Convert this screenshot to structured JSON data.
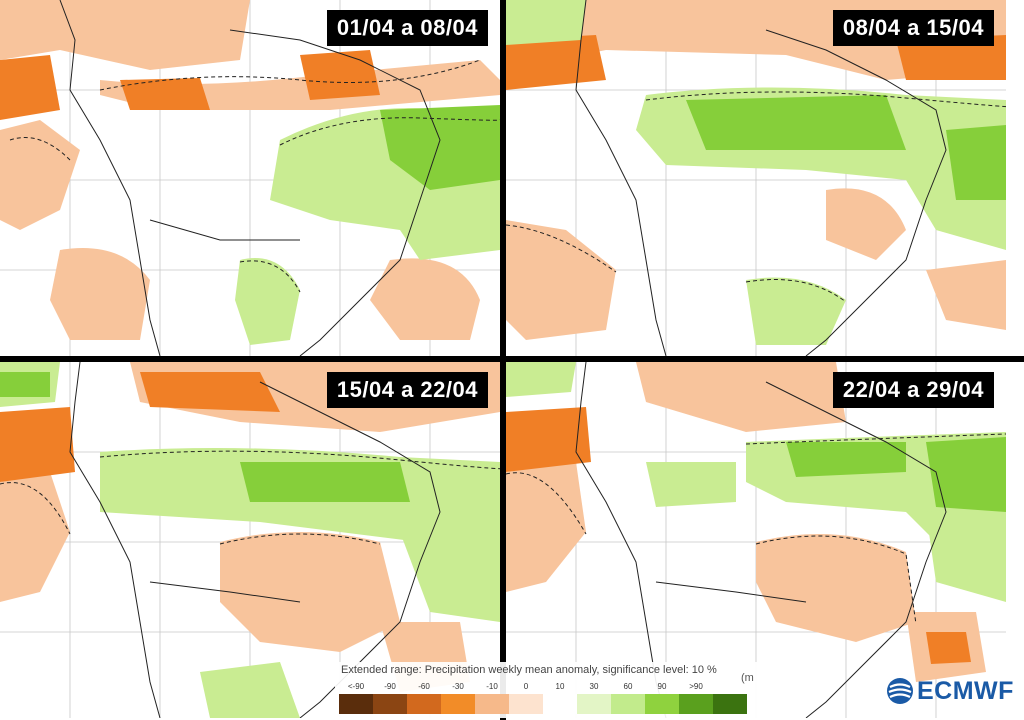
{
  "panels": [
    {
      "id": "p1",
      "label": "01/04 a 08/04"
    },
    {
      "id": "p2",
      "label": "08/04 a 15/04"
    },
    {
      "id": "p3",
      "label": "15/04 a 22/04"
    },
    {
      "id": "p4",
      "label": "22/04 a 29/04"
    }
  ],
  "legend": {
    "title": "Extended range: Precipitation weekly mean anomaly, significance level: 10 %",
    "ticks": [
      "<-90",
      "-90",
      "-60",
      "-30",
      "-10",
      "0",
      "10",
      "30",
      "60",
      "90",
      ">90"
    ],
    "unit": "(m",
    "colors": [
      "#5a2d0c",
      "#8b4513",
      "#d2691e",
      "#f28c28",
      "#f6b98a",
      "#fde3cf",
      "#ffffff",
      "#e3f5c6",
      "#c2eb8c",
      "#8fd23e",
      "#5aa01e",
      "#3b7310"
    ]
  },
  "logo": {
    "text": "ECMWF"
  },
  "colors": {
    "dry_strong": "#f07f26",
    "dry_light": "#f8c49c",
    "wet_light": "#c9ec92",
    "wet_strong": "#86cf3a",
    "coast": "#222222",
    "grid": "#bbbbbb"
  }
}
